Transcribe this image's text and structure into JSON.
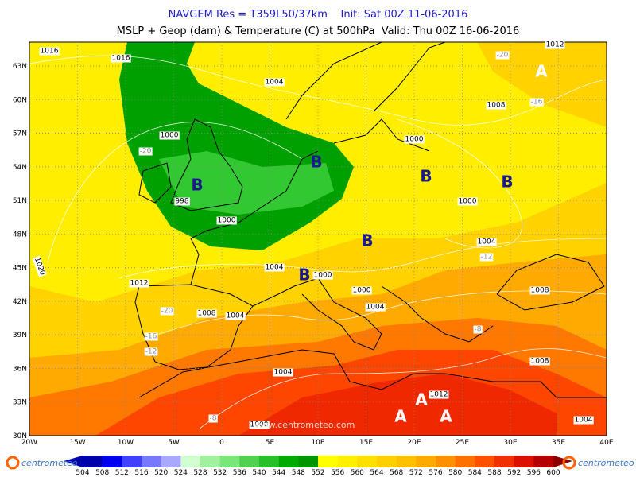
{
  "header": {
    "title": "NAVGEM Res = T359L50/37km    Init: Sat 00Z 11-06-2016",
    "subtitle": "MSLP + Geop (dam) & Temperature (C) at 500hPa  Valid: Thu 00Z 16-06-2016"
  },
  "map": {
    "lat_labels": [
      "63N",
      "60N",
      "57N",
      "54N",
      "51N",
      "48N",
      "45N",
      "42N",
      "39N",
      "36N",
      "33N",
      "30N"
    ],
    "lon_labels": [
      "20W",
      "15W",
      "10W",
      "5W",
      "0",
      "5E",
      "10E",
      "15E",
      "20E",
      "25E",
      "30E",
      "35E",
      "40E"
    ],
    "labels": [
      "1016",
      "1016",
      "1004",
      "1012",
      "-20",
      "-16",
      "1008",
      "1000",
      "-20",
      "1000",
      "998",
      "1000",
      "1000",
      "1004",
      "-12",
      "1004",
      "1000",
      "1020",
      "1012",
      "1000",
      "1004",
      "1008",
      "-20",
      "1008",
      "1004",
      "-16",
      "-12",
      "-8",
      "1008",
      "1004",
      "1012",
      "-8",
      "1000",
      "1004"
    ],
    "pressure_centers": [
      "B",
      "B",
      "B",
      "B",
      "B",
      "B",
      "A",
      "A",
      "A",
      "A"
    ],
    "watermark": "www.centrometeo.com"
  },
  "colorbar": {
    "labels": [
      "504",
      "508",
      "512",
      "516",
      "520",
      "524",
      "528",
      "532",
      "536",
      "540",
      "544",
      "548",
      "552",
      "556",
      "560",
      "564",
      "568",
      "572",
      "576",
      "580",
      "584",
      "588",
      "592",
      "596",
      "600"
    ],
    "colors": [
      "#0000aa",
      "#0000ee",
      "#4040ff",
      "#7878ff",
      "#a8a8ff",
      "#d0ffd0",
      "#a0f0a0",
      "#78e678",
      "#50d250",
      "#28c028",
      "#00aa00",
      "#009600",
      "#ffff00",
      "#fff000",
      "#ffe000",
      "#ffd000",
      "#ffc000",
      "#ffaa00",
      "#ff9000",
      "#ff7000",
      "#ff5000",
      "#f03000",
      "#dc1000",
      "#b40000"
    ]
  },
  "logos": [
    "centrometeo",
    "centrometeo"
  ]
}
